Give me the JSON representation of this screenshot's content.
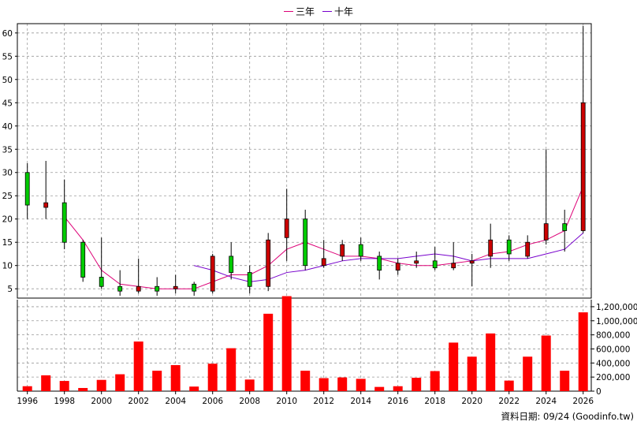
{
  "legend": {
    "series_3y_label": "三年",
    "series_10y_label": "十年"
  },
  "colors": {
    "up_candle": "#00cc00",
    "down_candle": "#cc0000",
    "volume_bar": "#ff0000",
    "ma3": "#dd0077",
    "ma10": "#7700cc",
    "grid": "#999999"
  },
  "source_note": "資料日期: 09/24 (Goodinfo.tw)",
  "chart_data": [
    {
      "type": "candlestick",
      "y_ticks": [
        "5",
        "10",
        "15",
        "20",
        "25",
        "30",
        "35",
        "40",
        "45",
        "50",
        "55",
        "60"
      ],
      "ylim": [
        3,
        62
      ],
      "candles": [
        {
          "year": 1996,
          "open": 23,
          "close": 30,
          "high": 32,
          "low": 20
        },
        {
          "year": 1997,
          "open": 23.5,
          "close": 22.5,
          "high": 32.5,
          "low": 20
        },
        {
          "year": 1998,
          "open": 15,
          "close": 23.5,
          "high": 28.5,
          "low": 13.5
        },
        {
          "year": 1999,
          "open": 7.5,
          "close": 15,
          "high": 15.5,
          "low": 6.5
        },
        {
          "year": 2000,
          "open": 5.5,
          "close": 7.5,
          "high": 16,
          "low": 5
        },
        {
          "year": 2001,
          "open": 4.5,
          "close": 5.5,
          "high": 9,
          "low": 3.5
        },
        {
          "year": 2002,
          "open": 5.5,
          "close": 4.5,
          "high": 11.5,
          "low": 4
        },
        {
          "year": 2003,
          "open": 4.5,
          "close": 5.5,
          "high": 7.5,
          "low": 3.5
        },
        {
          "year": 2004,
          "open": 5.5,
          "close": 5,
          "high": 8,
          "low": 4
        },
        {
          "year": 2005,
          "open": 4.5,
          "close": 6,
          "high": 6.5,
          "low": 3.5
        },
        {
          "year": 2006,
          "open": 12,
          "close": 4.5,
          "high": 12.5,
          "low": 4
        },
        {
          "year": 2007,
          "open": 8.5,
          "close": 12,
          "high": 15,
          "low": 7
        },
        {
          "year": 2008,
          "open": 5.5,
          "close": 8.5,
          "high": 10,
          "low": 4
        },
        {
          "year": 2009,
          "open": 15.5,
          "close": 5.5,
          "high": 17,
          "low": 4.5
        },
        {
          "year": 2010,
          "open": 20,
          "close": 16,
          "high": 26.5,
          "low": 11
        },
        {
          "year": 2011,
          "open": 10,
          "close": 20,
          "high": 22,
          "low": 9
        },
        {
          "year": 2012,
          "open": 11.5,
          "close": 10,
          "high": 15.5,
          "low": 9.5
        },
        {
          "year": 2013,
          "open": 14.5,
          "close": 12,
          "high": 15.5,
          "low": 11
        },
        {
          "year": 2014,
          "open": 12,
          "close": 14.5,
          "high": 16,
          "low": 11
        },
        {
          "year": 2015,
          "open": 9,
          "close": 12,
          "high": 13,
          "low": 7
        },
        {
          "year": 2016,
          "open": 10.5,
          "close": 9,
          "high": 11.5,
          "low": 8
        },
        {
          "year": 2017,
          "open": 11,
          "close": 10.5,
          "high": 13,
          "low": 9.5
        },
        {
          "year": 2018,
          "open": 9.5,
          "close": 11,
          "high": 14,
          "low": 9
        },
        {
          "year": 2019,
          "open": 10.5,
          "close": 9.5,
          "high": 15,
          "low": 9
        },
        {
          "year": 2020,
          "open": 11,
          "close": 10.5,
          "high": 12.5,
          "low": 5.5
        },
        {
          "year": 2021,
          "open": 15.5,
          "close": 12,
          "high": 19,
          "low": 9.5
        },
        {
          "year": 2022,
          "open": 12.5,
          "close": 15.5,
          "high": 16.5,
          "low": 11
        },
        {
          "year": 2023,
          "open": 15,
          "close": 12,
          "high": 16.5,
          "low": 11.5
        },
        {
          "year": 2024,
          "open": 19,
          "close": 15.5,
          "high": 35,
          "low": 14.5
        },
        {
          "year": 2025,
          "open": 17.5,
          "close": 19,
          "high": 22,
          "low": 13
        },
        {
          "year": 2026,
          "open": 45,
          "close": 17.5,
          "high": 61.5,
          "low": 17
        }
      ],
      "series": [
        {
          "name": "三年",
          "points": [
            [
              1998,
              20.5
            ],
            [
              1999,
              15.5
            ],
            [
              2000,
              9
            ],
            [
              2001,
              6
            ],
            [
              2002,
              5.5
            ],
            [
              2003,
              5
            ],
            [
              2004,
              5
            ],
            [
              2005,
              5
            ],
            [
              2006,
              6.5
            ],
            [
              2007,
              8
            ],
            [
              2008,
              8
            ],
            [
              2009,
              10
            ],
            [
              2010,
              13.5
            ],
            [
              2011,
              15
            ],
            [
              2012,
              13.5
            ],
            [
              2013,
              12
            ],
            [
              2014,
              12
            ],
            [
              2015,
              11.5
            ],
            [
              2016,
              10.5
            ],
            [
              2017,
              10
            ],
            [
              2018,
              10
            ],
            [
              2019,
              10.5
            ],
            [
              2020,
              11
            ],
            [
              2021,
              12.5
            ],
            [
              2022,
              13
            ],
            [
              2023,
              14.5
            ],
            [
              2024,
              15.5
            ],
            [
              2025,
              17.5
            ],
            [
              2026,
              27
            ]
          ]
        },
        {
          "name": "十年",
          "points": [
            [
              2005,
              10
            ],
            [
              2006,
              9
            ],
            [
              2007,
              7.5
            ],
            [
              2008,
              6.5
            ],
            [
              2009,
              7
            ],
            [
              2010,
              8.5
            ],
            [
              2011,
              9
            ],
            [
              2012,
              10
            ],
            [
              2013,
              11
            ],
            [
              2014,
              11.5
            ],
            [
              2015,
              11.5
            ],
            [
              2016,
              11.5
            ],
            [
              2017,
              12
            ],
            [
              2018,
              12.5
            ],
            [
              2019,
              12
            ],
            [
              2020,
              11
            ],
            [
              2021,
              11.5
            ],
            [
              2022,
              11.5
            ],
            [
              2023,
              11.5
            ],
            [
              2024,
              12.5
            ],
            [
              2025,
              13.5
            ],
            [
              2026,
              17
            ]
          ]
        }
      ]
    },
    {
      "type": "bar",
      "y_ticks": [
        "0",
        "200,000",
        "400,000",
        "600,000",
        "800,000",
        "1,000,000",
        "1,200,000"
      ],
      "ylim": [
        0,
        1300000
      ],
      "x_ticks": [
        "1996",
        "1998",
        "2000",
        "2002",
        "2004",
        "2006",
        "2008",
        "2010",
        "2012",
        "2014",
        "2016",
        "2018",
        "2020",
        "2022",
        "2024",
        "2026"
      ],
      "categories": [
        1996,
        1997,
        1998,
        1999,
        2000,
        2001,
        2002,
        2003,
        2004,
        2005,
        2006,
        2007,
        2008,
        2009,
        2010,
        2011,
        2012,
        2013,
        2014,
        2015,
        2016,
        2017,
        2018,
        2019,
        2020,
        2021,
        2022,
        2023,
        2024,
        2025,
        2026
      ],
      "values": [
        70000,
        225000,
        145000,
        45000,
        160000,
        240000,
        705000,
        290000,
        370000,
        65000,
        390000,
        610000,
        165000,
        1100000,
        1350000,
        290000,
        185000,
        195000,
        175000,
        60000,
        70000,
        190000,
        285000,
        690000,
        490000,
        820000,
        150000,
        490000,
        790000,
        290000,
        1120000
      ]
    }
  ]
}
